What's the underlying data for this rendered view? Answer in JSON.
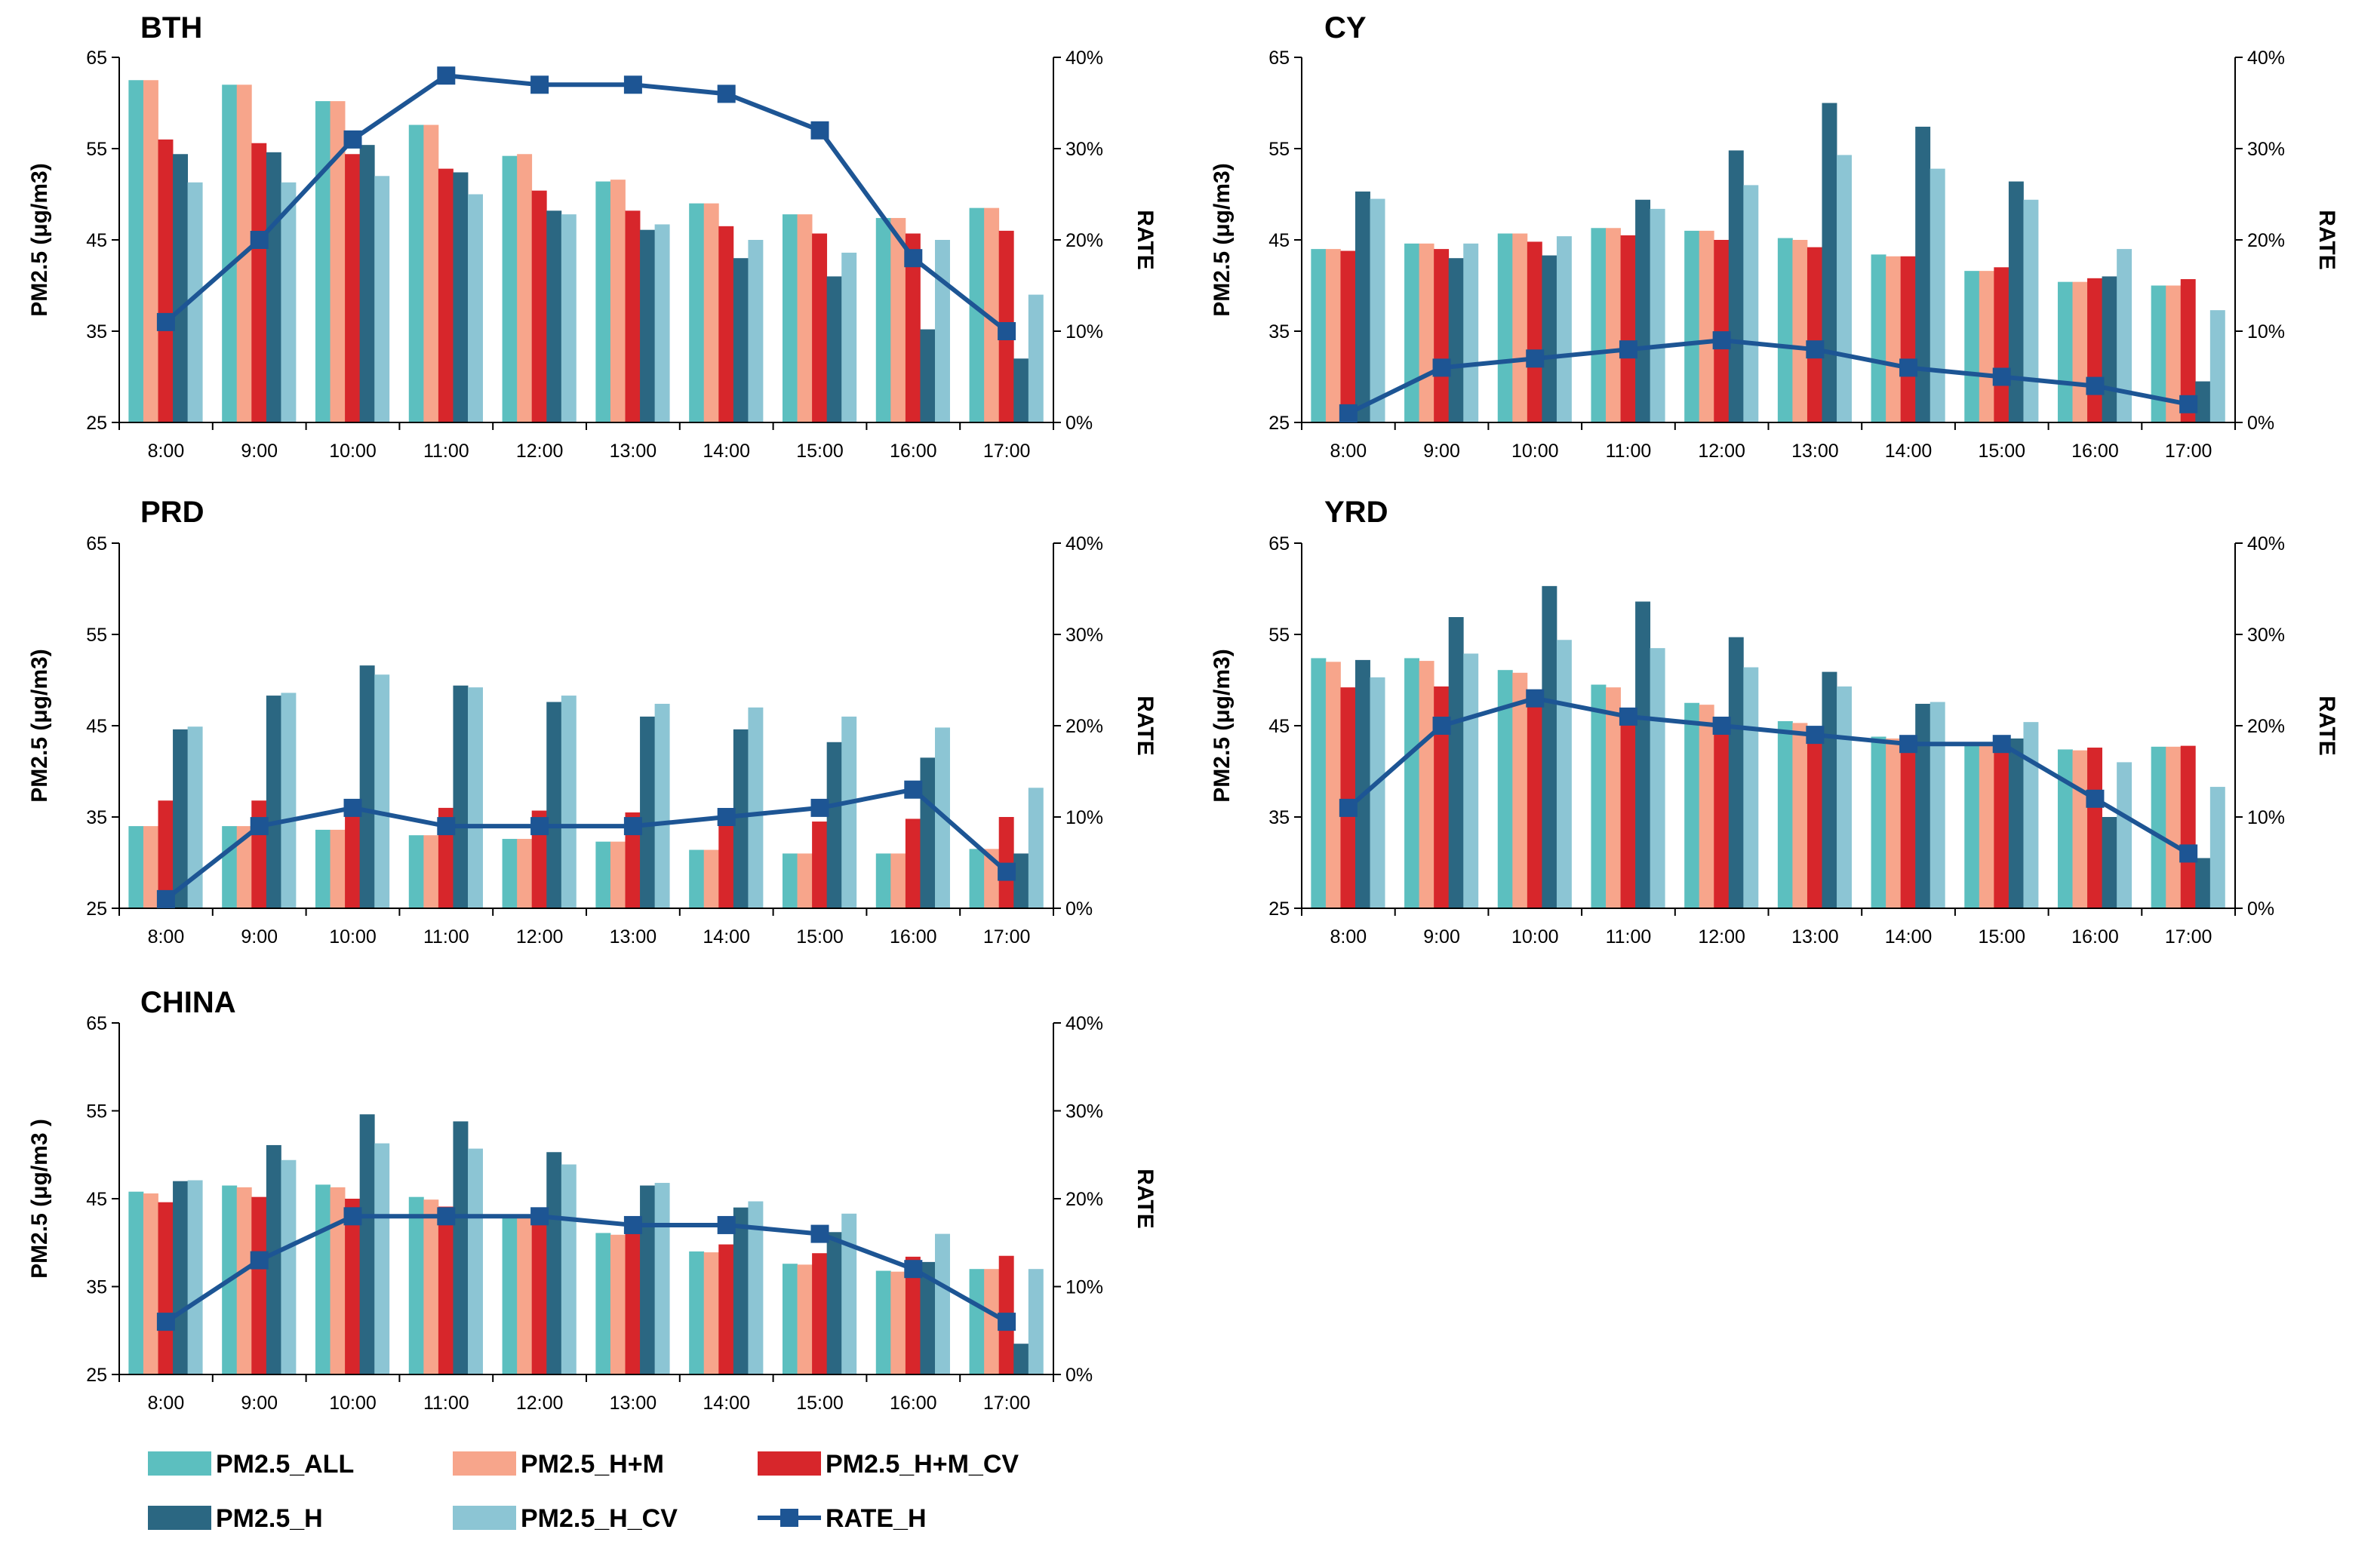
{
  "colors": {
    "PM2.5_ALL": "#5cbfbf",
    "PM2.5_H+M": "#f7a58b",
    "PM2.5_H+M_CV": "#d7262b",
    "PM2.5_H": "#2b6782",
    "PM2.5_H_CV": "#8cc5d4",
    "RATE_H": "#1d5594"
  },
  "legend": [
    {
      "key": "PM2.5_ALL",
      "label": "PM2.5_ALL"
    },
    {
      "key": "PM2.5_H+M",
      "label": "PM2.5_H+M"
    },
    {
      "key": "PM2.5_H+M_CV",
      "label": "PM2.5_H+M_CV"
    },
    {
      "key": "PM2.5_H",
      "label": "PM2.5_H"
    },
    {
      "key": "PM2.5_H_CV",
      "label": "PM2.5_H_CV"
    },
    {
      "key": "RATE_H",
      "label": "RATE_H"
    }
  ],
  "chart_data": [
    {
      "type": "bar",
      "title": "BTH",
      "ylabel": "PM2.5 (μg/m3)",
      "y2label": "RATE",
      "ylim": [
        25,
        65
      ],
      "yticks": [
        "25",
        "35",
        "45",
        "55",
        "65"
      ],
      "y2lim": [
        0,
        40
      ],
      "y2ticks": [
        "0%",
        "10%",
        "20%",
        "30%",
        "40%"
      ],
      "categories": [
        "8:00",
        "9:00",
        "10:00",
        "11:00",
        "12:00",
        "13:00",
        "14:00",
        "15:00",
        "16:00",
        "17:00"
      ],
      "series": [
        {
          "name": "PM2.5_ALL",
          "values": [
            62.5,
            62,
            60.2,
            57.6,
            54.2,
            51.4,
            49,
            47.8,
            47.4,
            48.5
          ]
        },
        {
          "name": "PM2.5_H+M",
          "values": [
            62.5,
            62,
            60.2,
            57.6,
            54.4,
            51.6,
            49,
            47.8,
            47.4,
            48.5
          ]
        },
        {
          "name": "PM2.5_H+M_CV",
          "values": [
            56,
            55.6,
            54.4,
            52.8,
            50.4,
            48.2,
            46.5,
            45.7,
            45.7,
            46
          ]
        },
        {
          "name": "PM2.5_H",
          "values": [
            54.4,
            54.6,
            55.4,
            52.4,
            48.2,
            46.1,
            43,
            41,
            35.2,
            32
          ]
        },
        {
          "name": "PM2.5_H_CV",
          "values": [
            51.3,
            51.3,
            52,
            50,
            47.8,
            46.7,
            45,
            43.6,
            45,
            39
          ]
        }
      ],
      "line": {
        "name": "RATE_H",
        "values": [
          11,
          20,
          31,
          38,
          37,
          37,
          36,
          32,
          18,
          10
        ]
      }
    },
    {
      "type": "bar",
      "title": "CY",
      "ylabel": "PM2.5 (μg/m3)",
      "y2label": "RATE",
      "ylim": [
        25,
        65
      ],
      "yticks": [
        "25",
        "35",
        "45",
        "55",
        "65"
      ],
      "y2lim": [
        0,
        40
      ],
      "y2ticks": [
        "0%",
        "10%",
        "20%",
        "30%",
        "40%"
      ],
      "categories": [
        "8:00",
        "9:00",
        "10:00",
        "11:00",
        "12:00",
        "13:00",
        "14:00",
        "15:00",
        "16:00",
        "17:00"
      ],
      "series": [
        {
          "name": "PM2.5_ALL",
          "values": [
            44,
            44.6,
            45.7,
            46.3,
            46,
            45.2,
            43.4,
            41.6,
            40.4,
            40
          ]
        },
        {
          "name": "PM2.5_H+M",
          "values": [
            44,
            44.6,
            45.7,
            46.3,
            46,
            45,
            43.2,
            41.6,
            40.4,
            40
          ]
        },
        {
          "name": "PM2.5_H+M_CV",
          "values": [
            43.8,
            44,
            44.8,
            45.5,
            45,
            44.2,
            43.2,
            42,
            40.8,
            40.7
          ]
        },
        {
          "name": "PM2.5_H",
          "values": [
            50.3,
            43,
            43.3,
            49.4,
            54.8,
            60,
            57.4,
            51.4,
            41,
            29.5
          ]
        },
        {
          "name": "PM2.5_H_CV",
          "values": [
            49.5,
            44.6,
            45.4,
            48.4,
            51,
            54.3,
            52.8,
            49.4,
            44,
            37.3
          ]
        }
      ],
      "line": {
        "name": "RATE_H",
        "values": [
          1,
          6,
          7,
          8,
          9,
          8,
          6,
          5,
          4,
          2
        ]
      }
    },
    {
      "type": "bar",
      "title": "PRD",
      "ylabel": "PM2.5 (μg/m3)",
      "y2label": "RATE",
      "ylim": [
        25,
        65
      ],
      "yticks": [
        "25",
        "35",
        "45",
        "55",
        "65"
      ],
      "y2lim": [
        0,
        40
      ],
      "y2ticks": [
        "0%",
        "10%",
        "20%",
        "30%",
        "40%"
      ],
      "categories": [
        "8:00",
        "9:00",
        "10:00",
        "11:00",
        "12:00",
        "13:00",
        "14:00",
        "15:00",
        "16:00",
        "17:00"
      ],
      "series": [
        {
          "name": "PM2.5_ALL",
          "values": [
            34,
            34,
            33.6,
            33,
            32.6,
            32.3,
            31.4,
            31,
            31,
            31.5
          ]
        },
        {
          "name": "PM2.5_H+M",
          "values": [
            34,
            34,
            33.6,
            33,
            32.6,
            32.3,
            31.4,
            31,
            31,
            31.5
          ]
        },
        {
          "name": "PM2.5_H+M_CV",
          "values": [
            36.8,
            36.8,
            36,
            36,
            35.7,
            35.5,
            35.2,
            34.5,
            34.8,
            35
          ]
        },
        {
          "name": "PM2.5_H",
          "values": [
            44.6,
            48.3,
            51.6,
            49.4,
            47.6,
            46,
            44.6,
            43.2,
            41.5,
            31
          ]
        },
        {
          "name": "PM2.5_H_CV",
          "values": [
            44.9,
            48.6,
            50.6,
            49.2,
            48.3,
            47.4,
            47,
            46,
            44.8,
            38.2
          ]
        }
      ],
      "line": {
        "name": "RATE_H",
        "values": [
          1,
          9,
          11,
          9,
          9,
          9,
          10,
          11,
          13,
          4
        ]
      }
    },
    {
      "type": "bar",
      "title": "YRD",
      "ylabel": "PM2.5 (μg/m3)",
      "y2label": "RATE",
      "ylim": [
        25,
        65
      ],
      "yticks": [
        "25",
        "35",
        "45",
        "55",
        "65"
      ],
      "y2lim": [
        0,
        40
      ],
      "y2ticks": [
        "0%",
        "10%",
        "20%",
        "30%",
        "40%"
      ],
      "categories": [
        "8:00",
        "9:00",
        "10:00",
        "11:00",
        "12:00",
        "13:00",
        "14:00",
        "15:00",
        "16:00",
        "17:00"
      ],
      "series": [
        {
          "name": "PM2.5_ALL",
          "values": [
            52.4,
            52.4,
            51.1,
            49.5,
            47.5,
            45.5,
            43.8,
            43.2,
            42.4,
            42.7
          ]
        },
        {
          "name": "PM2.5_H+M",
          "values": [
            52,
            52.1,
            50.8,
            49.2,
            47.3,
            45.3,
            43.6,
            43,
            42.3,
            42.7
          ]
        },
        {
          "name": "PM2.5_H+M_CV",
          "values": [
            49.2,
            49.3,
            48,
            46.8,
            45.5,
            44.2,
            43.4,
            43.1,
            42.6,
            42.8
          ]
        },
        {
          "name": "PM2.5_H",
          "values": [
            52.2,
            56.9,
            60.3,
            58.6,
            54.7,
            50.9,
            47.4,
            43.6,
            35,
            30.5
          ]
        },
        {
          "name": "PM2.5_H_CV",
          "values": [
            50.3,
            52.9,
            54.4,
            53.5,
            51.4,
            49.3,
            47.6,
            45.4,
            41,
            38.3
          ]
        }
      ],
      "line": {
        "name": "RATE_H",
        "values": [
          11,
          20,
          23,
          21,
          20,
          19,
          18,
          18,
          12,
          6
        ]
      }
    },
    {
      "type": "bar",
      "title": "CHINA",
      "ylabel": "PM2.5 (μg/m3 )",
      "y2label": "RATE",
      "ylim": [
        25,
        65
      ],
      "yticks": [
        "25",
        "35",
        "45",
        "55",
        "65"
      ],
      "y2lim": [
        0,
        40
      ],
      "y2ticks": [
        "0%",
        "10%",
        "20%",
        "30%",
        "40%"
      ],
      "categories": [
        "8:00",
        "9:00",
        "10:00",
        "11:00",
        "12:00",
        "13:00",
        "14:00",
        "15:00",
        "16:00",
        "17:00"
      ],
      "series": [
        {
          "name": "PM2.5_ALL",
          "values": [
            45.8,
            46.5,
            46.6,
            45.2,
            43,
            41.1,
            39,
            37.6,
            36.8,
            37
          ]
        },
        {
          "name": "PM2.5_H+M",
          "values": [
            45.6,
            46.3,
            46.3,
            44.9,
            43,
            40.9,
            38.9,
            37.5,
            36.7,
            37
          ]
        },
        {
          "name": "PM2.5_H+M_CV",
          "values": [
            44.6,
            45.2,
            45,
            44.1,
            43.2,
            41.2,
            39.8,
            38.8,
            38.4,
            38.5
          ]
        },
        {
          "name": "PM2.5_H",
          "values": [
            47,
            51.1,
            54.6,
            53.8,
            50.3,
            46.5,
            44,
            41.2,
            37.8,
            28.5
          ]
        },
        {
          "name": "PM2.5_H_CV",
          "values": [
            47.1,
            49.4,
            51.3,
            50.7,
            48.9,
            46.8,
            44.7,
            43.3,
            41,
            37
          ]
        }
      ],
      "line": {
        "name": "RATE_H",
        "values": [
          6,
          13,
          18,
          18,
          18,
          17,
          17,
          16,
          12,
          6
        ]
      }
    }
  ]
}
